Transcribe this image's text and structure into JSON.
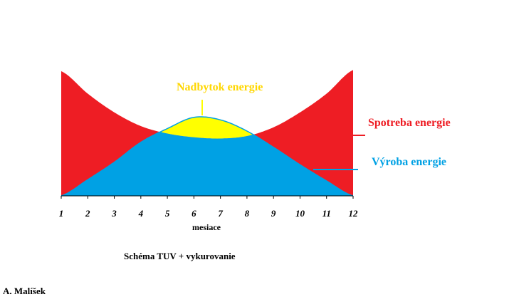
{
  "chart_data": {
    "type": "area",
    "x": [
      1,
      2,
      3,
      4,
      5,
      6,
      7,
      8,
      9,
      10,
      11,
      12
    ],
    "xlabel": "mesiace",
    "xlim": [
      1,
      12
    ],
    "ylim": [
      0,
      10
    ],
    "grid": false,
    "caption": "Schéma TUV + vykurovanie",
    "author": "A. Malíšek",
    "series": [
      {
        "name": "Spotreba energie",
        "color": "#ee1d24",
        "values": [
          10,
          8.2,
          6.7,
          5.6,
          5.0,
          4.7,
          4.6,
          4.8,
          5.5,
          6.7,
          8.2,
          10.1
        ]
      },
      {
        "name": "Výroba energie",
        "color": "#00a1e4",
        "values": [
          0,
          1.3,
          2.7,
          4.3,
          5.4,
          6.3,
          6.1,
          5.2,
          3.9,
          2.5,
          1.2,
          0
        ]
      }
    ],
    "surplus": {
      "label": "Nadbytok energie",
      "color": "#ffff00"
    }
  }
}
